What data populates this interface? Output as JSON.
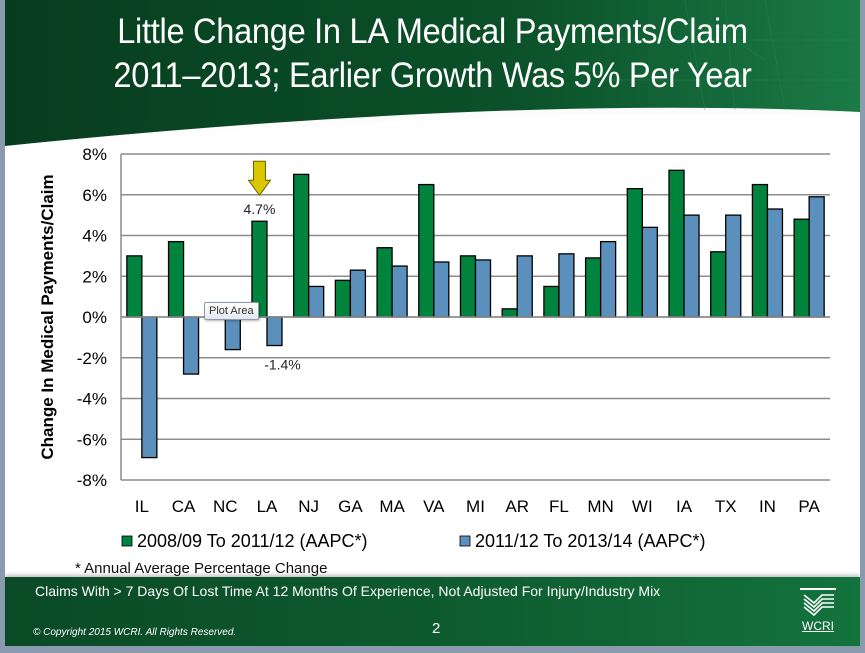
{
  "slide": {
    "title_lines": [
      "Little Change In LA Medical Payments/Claim",
      "2011–2013; Earlier Growth Was 5% Per Year"
    ],
    "footnote": "* Annual Average Percentage Change",
    "footer_text": "Claims With > 7 Days Of Lost Time At 12 Months Of Experience, Not Adjusted For Injury/Industry Mix",
    "copyright": "© Copyright 2015 WCRI. All Rights Reserved.",
    "page_number": "2",
    "logo_text": "WCRI",
    "tooltip": "Plot Area",
    "colors": {
      "header_green": "#0b4a26",
      "series1": "#00843d",
      "series2": "#5b8fbc",
      "arrow": "#d9c700"
    }
  },
  "chart_data": {
    "type": "bar",
    "title": "",
    "xlabel": "",
    "ylabel": "Change In Medical Payments/Claim",
    "ylim": [
      -8,
      8
    ],
    "yticks": [
      8,
      6,
      4,
      2,
      0,
      -2,
      -4,
      -6,
      -8
    ],
    "ytick_labels": [
      "8%",
      "6%",
      "4%",
      "2%",
      "0%",
      "-2%",
      "-4%",
      "-6%",
      "-8%"
    ],
    "grid": true,
    "legend_position": "bottom",
    "categories": [
      "IL",
      "CA",
      "NC",
      "LA",
      "NJ",
      "GA",
      "MA",
      "VA",
      "MI",
      "AR",
      "FL",
      "MN",
      "WI",
      "IA",
      "TX",
      "IN",
      "PA"
    ],
    "series": [
      {
        "name": "2008/09 To 2011/12 (AAPC*)",
        "color": "#00843d",
        "values": [
          3.0,
          3.7,
          0.0,
          4.7,
          7.0,
          1.8,
          3.4,
          6.5,
          3.0,
          0.4,
          1.5,
          2.9,
          6.3,
          7.2,
          3.2,
          6.5,
          4.8
        ]
      },
      {
        "name": "2011/12 To 2013/14 (AAPC*)",
        "color": "#5b8fbc",
        "values": [
          -6.9,
          -2.8,
          -1.6,
          -1.4,
          1.5,
          2.3,
          2.5,
          2.7,
          2.8,
          3.0,
          3.1,
          3.7,
          4.4,
          5.0,
          5.0,
          5.3,
          5.9
        ]
      }
    ],
    "annotations": [
      {
        "category": "LA",
        "series": 0,
        "text": "4.7%",
        "arrow": "down"
      },
      {
        "category": "LA",
        "series": 1,
        "text": "-1.4%"
      }
    ]
  }
}
